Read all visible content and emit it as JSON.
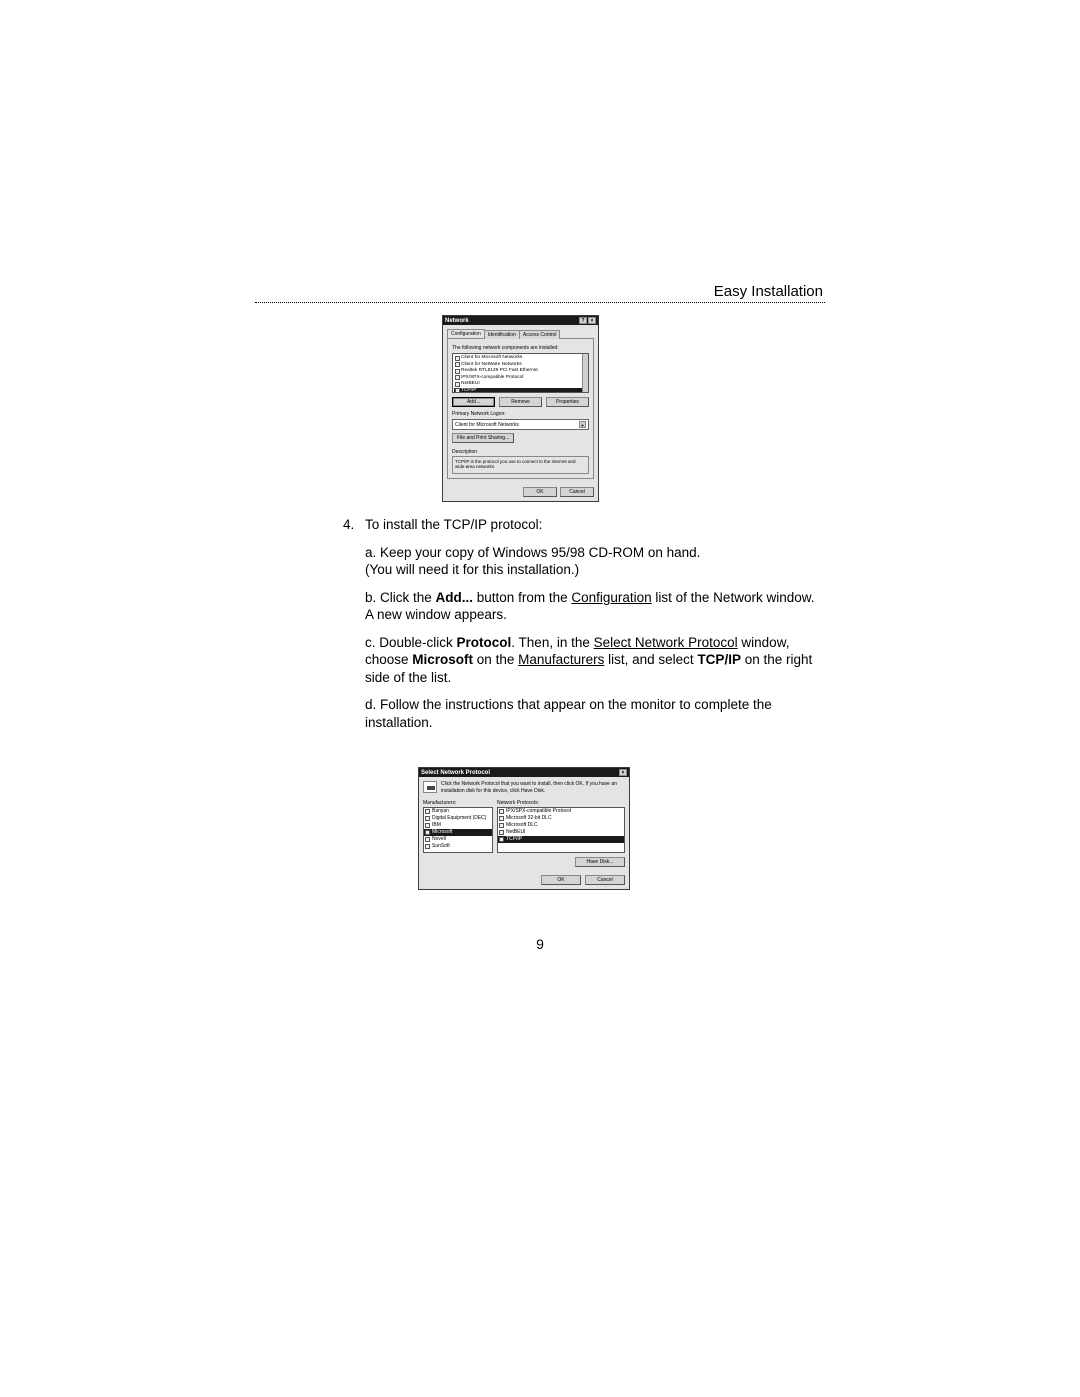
{
  "header": {
    "title": "Easy Installation"
  },
  "dialog1": {
    "title": "Network",
    "help_btn": "?",
    "close_btn": "×",
    "tabs": {
      "t0": "Configuration",
      "t1": "Identification",
      "t2": "Access Control"
    },
    "components_label": "The following network components are installed:",
    "list": {
      "i0": "Client for Microsoft Networks",
      "i1": "Client for NetWare Networks",
      "i2": "Realtek RTL8139 PCI Fast Ethernet",
      "i3": "IPX/SPX-compatible Protocol",
      "i4": "NetBEUI",
      "i5": "TCP/IP"
    },
    "buttons": {
      "add": "Add...",
      "remove": "Remove",
      "properties": "Properties"
    },
    "logon_label": "Primary Network Logon:",
    "logon_value": "Client for Microsoft Networks",
    "share_btn": "File and Print Sharing...",
    "desc_label": "Description",
    "desc_text": "TCP/IP is the protocol you use to connect to the Internet and wide-area networks.",
    "ok": "OK",
    "cancel": "Cancel"
  },
  "text": {
    "step_num": "4.",
    "step_title": "To install the TCP/IP protocol:",
    "a1": "a. Keep your copy of Windows 95/98 CD-ROM on hand.",
    "a2": "(You will need it for this installation.)",
    "b_pre": "b. Click the ",
    "b_bold": "Add...",
    "b_mid": " button from the ",
    "b_u": "Configuration",
    "b_post": " list of the Network window. A new window appears.",
    "c_pre": "c. Double-click ",
    "c_bold1": "Protocol",
    "c_mid1": ". Then, in the ",
    "c_u1": "Select Network Protocol",
    "c_mid2": " window, choose ",
    "c_bold2": "Microsoft",
    "c_mid3": " on the ",
    "c_u2": "Manufacturers",
    "c_mid4": " list, and select ",
    "c_bold3": "TCP/IP",
    "c_post": " on the right side of the list.",
    "d": "d. Follow the instructions that appear on the monitor to complete the installation."
  },
  "dialog2": {
    "title": "Select Network Protocol",
    "close_btn": "×",
    "instr": "Click the Network Protocol that you want to install, then click OK. If you have an installation disk for this device, click Have Disk.",
    "left_label": "Manufacturers:",
    "right_label": "Network Protocols:",
    "left": {
      "i0": "Banyan",
      "i1": "Digital Equipment (DEC)",
      "i2": "IBM",
      "i3": "Microsoft",
      "i4": "Novell",
      "i5": "SunSoft"
    },
    "right": {
      "i0": "IPX/SPX-compatible Protocol",
      "i1": "Microsoft 32-bit DLC",
      "i2": "Microsoft DLC",
      "i3": "NetBEUI",
      "i4": "TCP/IP"
    },
    "have_disk": "Have Disk...",
    "ok": "OK",
    "cancel": "Cancel"
  },
  "page_number": "9"
}
